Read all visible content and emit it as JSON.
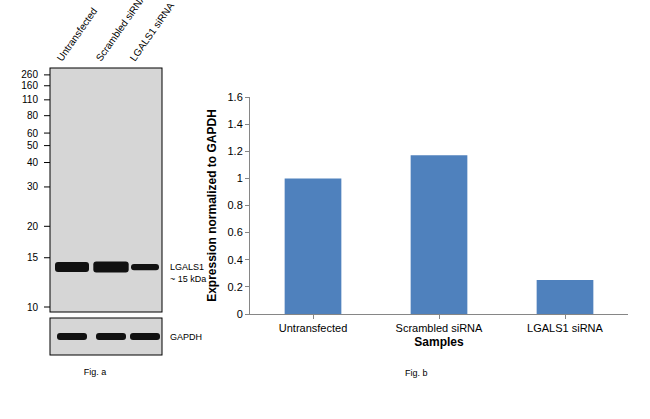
{
  "figure_a": {
    "caption": "Fig. a",
    "lanes": [
      "Untransfected",
      "Scrambled siRNA",
      "LGALS1 siRNA"
    ],
    "markers": [
      260,
      160,
      110,
      80,
      60,
      50,
      40,
      30,
      20,
      15,
      10
    ],
    "target": {
      "name": "LGALS1",
      "size": "~ 15 kDa"
    },
    "loading_control": "GAPDH"
  },
  "chart_data": {
    "type": "bar",
    "caption": "Fig. b",
    "categories": [
      "Untransfected",
      "Scrambled siRNA",
      "LGALS1 siRNA"
    ],
    "values": [
      1,
      1.17,
      0.25
    ],
    "color": "#4f81bd",
    "xlabel": "Samples",
    "ylabel": "Expression normalized to GAPDH",
    "ylim": [
      0,
      1.6
    ],
    "yticks": [
      0,
      0.2,
      0.4,
      0.6,
      0.8,
      1,
      1.2,
      1.4,
      1.6
    ],
    "grid": false
  }
}
